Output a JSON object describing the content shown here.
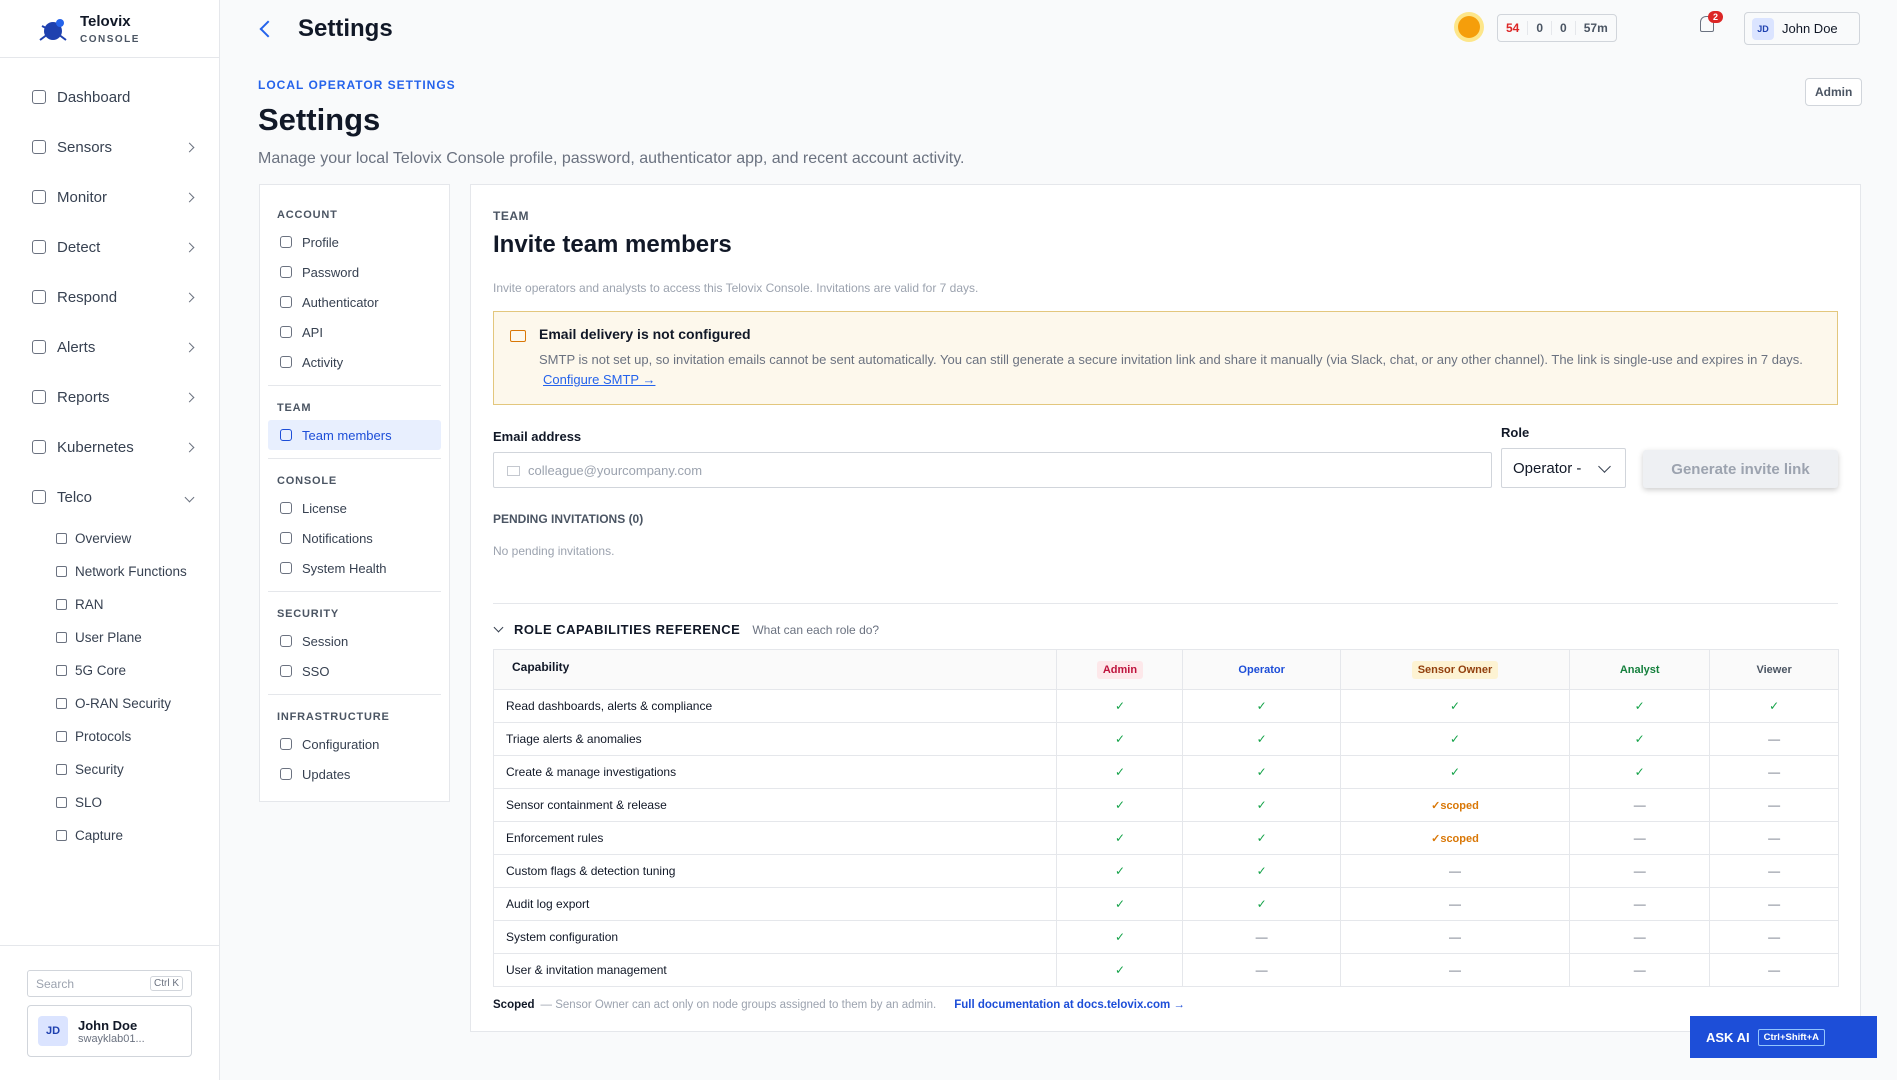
{
  "brand": {
    "name": "Telovix",
    "sub": "CONSOLE"
  },
  "nav": [
    "Dashboard",
    "Sensors",
    "Monitor",
    "Detect",
    "Respond",
    "Alerts",
    "Reports",
    "Kubernetes",
    "Telco"
  ],
  "telco_items": [
    "Overview",
    "Network Functions",
    "RAN",
    "User Plane",
    "5G Core",
    "O-RAN Security",
    "Protocols",
    "Security",
    "SLO",
    "Capture"
  ],
  "sidebar_footer": {
    "search": "Search",
    "shortcut": "Ctrl K",
    "initials": "JD",
    "user": "John Doe",
    "org": "swayklab01..."
  },
  "header": {
    "title": "Settings",
    "stats": [
      "54",
      "0",
      "0",
      "57m"
    ],
    "notifications": "2",
    "initials": "JD",
    "user": "John Doe"
  },
  "page": {
    "eyebrow": "LOCAL OPERATOR SETTINGS",
    "title": "Settings",
    "description": "Manage your local Telovix Console profile, password, authenticator app, and recent account activity.",
    "badge": "Admin"
  },
  "settings_nav": [
    {
      "title": "ACCOUNT",
      "items": [
        "Profile",
        "Password",
        "Authenticator",
        "API",
        "Activity"
      ]
    },
    {
      "title": "TEAM",
      "items": [
        "Team members"
      ]
    },
    {
      "title": "CONSOLE",
      "items": [
        "License",
        "Notifications",
        "System Health"
      ]
    },
    {
      "title": "SECURITY",
      "items": [
        "Session",
        "SSO"
      ]
    },
    {
      "title": "INFRASTRUCTURE",
      "items": [
        "Configuration",
        "Updates"
      ]
    }
  ],
  "panel": {
    "eyebrow": "TEAM",
    "title": "Invite team members",
    "description": "Invite operators and analysts to access this Telovix Console. Invitations are valid for 7 days.",
    "alert": {
      "title": "Email delivery is not configured",
      "body": "SMTP is not set up, so invitation emails cannot be sent automatically. You can still generate a secure invitation link and share it manually (via Slack, chat, or any other channel). The link is single-use and expires in 7 days.",
      "link": "Configure SMTP →"
    },
    "form": {
      "email_label": "Email address",
      "email_placeholder": "colleague@yourcompany.com",
      "role_label": "Role",
      "role_value": "Operator -",
      "button": "Generate invite link"
    },
    "pending": {
      "title": "PENDING INVITATIONS (0)",
      "empty": "No pending invitations."
    },
    "roles": {
      "title": "ROLE CAPABILITIES REFERENCE",
      "subtitle": "What can each role do?",
      "columns": [
        "Capability",
        "Admin",
        "Operator",
        "Sensor Owner",
        "Analyst",
        "Viewer"
      ],
      "rows": [
        [
          "Read dashboards, alerts & compliance",
          "✓",
          "✓",
          "✓",
          "✓",
          "✓"
        ],
        [
          "Triage alerts & anomalies",
          "✓",
          "✓",
          "✓",
          "✓",
          "—"
        ],
        [
          "Create & manage investigations",
          "✓",
          "✓",
          "✓",
          "✓",
          "—"
        ],
        [
          "Sensor containment & release",
          "✓",
          "✓",
          "✓scoped",
          "—",
          "—"
        ],
        [
          "Enforcement rules",
          "✓",
          "✓",
          "✓scoped",
          "—",
          "—"
        ],
        [
          "Custom flags & detection tuning",
          "✓",
          "✓",
          "—",
          "—",
          "—"
        ],
        [
          "Audit log export",
          "✓",
          "✓",
          "—",
          "—",
          "—"
        ],
        [
          "System configuration",
          "✓",
          "—",
          "—",
          "—",
          "—"
        ],
        [
          "User & invitation management",
          "✓",
          "—",
          "—",
          "—",
          "—"
        ]
      ]
    },
    "footnote": {
      "term": "Scoped",
      "text": "— Sensor Owner can act only on node groups assigned to them by an admin.",
      "link": "Full documentation at docs.telovix.com →"
    }
  },
  "ask_ai": {
    "label": "ASK AI",
    "shortcut": "Ctrl+Shift+A"
  }
}
